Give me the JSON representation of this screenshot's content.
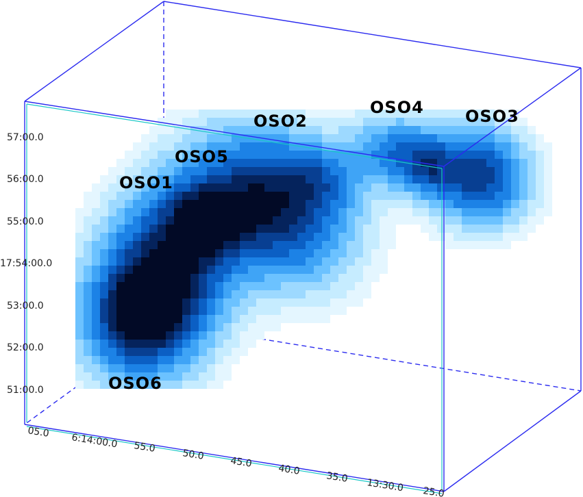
{
  "view": {
    "ra_ticks": [
      "05.0",
      "6:14:00.0",
      "55.0",
      "50.0",
      "45.0",
      "40.0",
      "35.0",
      "13:30.0",
      "25.0"
    ],
    "dec_ticks": [
      "57:00.0",
      "56:00.0",
      "55:00.0",
      "17:54:00.0",
      "53:00.0",
      "52:00.0",
      "51:00.0"
    ]
  },
  "sources": [
    {
      "label": "OSO1"
    },
    {
      "label": "OSO2"
    },
    {
      "label": "OSO3"
    },
    {
      "label": "OSO4"
    },
    {
      "label": "OSO5"
    },
    {
      "label": "OSO6"
    }
  ],
  "colors": {
    "box_edge": "#2b2bef",
    "box_highlight": "#19c7c7",
    "emission_ramp": [
      "#e4f6ff",
      "#c6ecff",
      "#9dd9ff",
      "#6cc2ff",
      "#3fa4f6",
      "#1c82e6",
      "#0b5fc4",
      "#083f92",
      "#05235c",
      "#020a26"
    ]
  }
}
